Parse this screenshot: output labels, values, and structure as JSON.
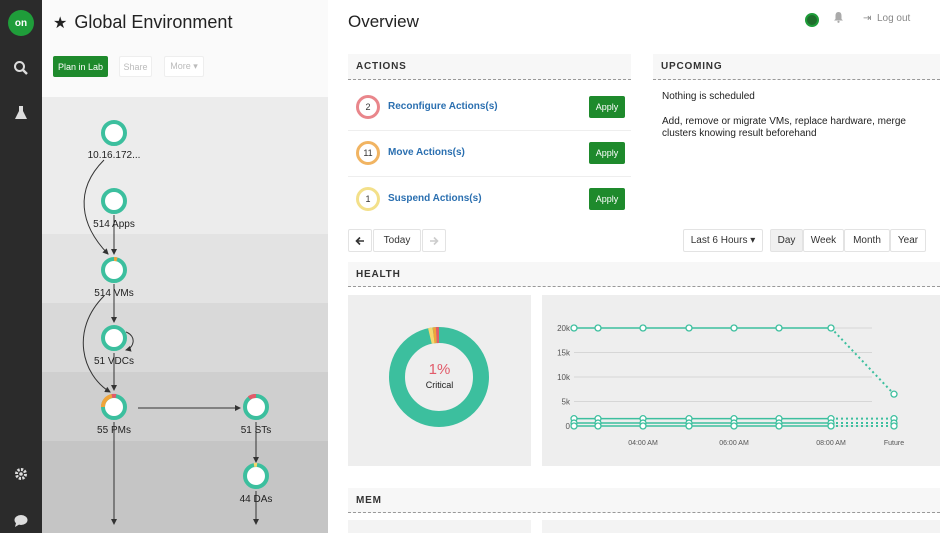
{
  "rail": {
    "logo": "on",
    "search_icon": "search-icon",
    "lab_icon": "flask-icon",
    "settings_icon": "gear-icon",
    "chat_icon": "chat-icon"
  },
  "topology": {
    "title": "Global Environment",
    "buttons": {
      "plan": "Plan in Lab",
      "share": "Share",
      "more": "More ▾"
    },
    "nodes": [
      {
        "label": "10.16.172..."
      },
      {
        "label": "514 Apps"
      },
      {
        "label": "514 VMs"
      },
      {
        "label": "51 VDCs"
      },
      {
        "label": "55 PMs"
      },
      {
        "label": "51 STs"
      },
      {
        "label": "44 DAs"
      }
    ]
  },
  "header": {
    "page_title": "Overview",
    "logout": "Log out"
  },
  "actions": {
    "heading": "ACTIONS",
    "items": [
      {
        "count": "2",
        "label": "Reconfigure Actions(s)",
        "apply": "Apply",
        "ring_color": "#e9868b"
      },
      {
        "count": "11",
        "label": "Move Actions(s)",
        "apply": "Apply",
        "ring_color": "#f1b462"
      },
      {
        "count": "1",
        "label": "Suspend Actions(s)",
        "apply": "Apply",
        "ring_color": "#f3e08a"
      }
    ]
  },
  "upcoming": {
    "heading": "UPCOMING",
    "line1": "Nothing is scheduled",
    "line2": "Add, remove or migrate VMs, replace hardware, merge clusters knowing result beforehand"
  },
  "timeline": {
    "today": "Today",
    "range": "Last 6 Hours ▾",
    "tabs": [
      "Day",
      "Week",
      "Month",
      "Year"
    ],
    "active_tab": "Day"
  },
  "health": {
    "heading": "HEALTH",
    "percent": "1%",
    "caption": "Critical",
    "colors": {
      "normal": "#3cbf9e",
      "critical": "#e25b6a",
      "major": "#f0a43a",
      "minor": "#f5d76e"
    }
  },
  "mem": {
    "heading": "MEM"
  },
  "chart_data": {
    "type": "line",
    "x": [
      "",
      "",
      "04:00 AM",
      "",
      "06:00 AM",
      "",
      "08:00 AM",
      "Future"
    ],
    "xtick_labels": [
      "04:00 AM",
      "06:00 AM",
      "08:00 AM",
      "Future"
    ],
    "ytick_labels": [
      "0",
      "5k",
      "10k",
      "15k",
      "20k"
    ],
    "ylim": [
      0,
      22000
    ],
    "series": [
      {
        "values": [
          20000,
          20000,
          20000,
          20000,
          20000,
          20000,
          20000,
          6500
        ],
        "color": "#3cbf9e"
      },
      {
        "values": [
          1500,
          1500,
          1500,
          1500,
          1500,
          1500,
          1500,
          1500
        ],
        "color": "#3cbf9e"
      },
      {
        "values": [
          600,
          600,
          600,
          600,
          600,
          600,
          600,
          600
        ],
        "color": "#3cbf9e"
      },
      {
        "values": [
          0,
          0,
          0,
          0,
          0,
          0,
          0,
          0
        ],
        "color": "#3cbf9e"
      }
    ]
  }
}
